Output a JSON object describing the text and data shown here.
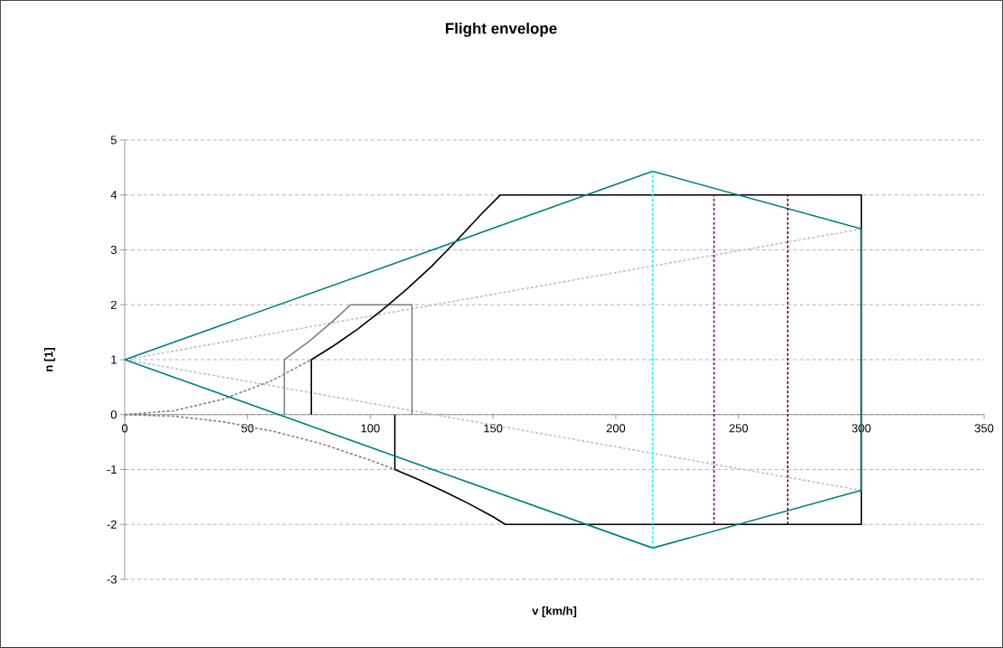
{
  "chart_data": {
    "type": "line",
    "title": "Flight envelope",
    "xlabel": "v [km/h]",
    "ylabel": "n [1]",
    "xlim": [
      0,
      350
    ],
    "xticks": [
      0,
      50,
      100,
      150,
      200,
      250,
      300,
      350
    ],
    "ylim": [
      -3,
      5
    ],
    "yticks": [
      -3,
      -2,
      -1,
      0,
      1,
      2,
      3,
      4,
      5
    ],
    "grid": "y",
    "marker": "none",
    "series": [
      {
        "color": "#c0c0c0",
        "line_style": "dotted",
        "x": [
          0,
          300
        ],
        "values": [
          1,
          3.38
        ]
      },
      {
        "color": "#c0c0c0",
        "line_style": "dotted",
        "x": [
          0,
          300
        ],
        "values": [
          1,
          -1.38
        ]
      },
      {
        "color": "#808080",
        "line_style": "dotted",
        "x": [
          0,
          20,
          40,
          60,
          76
        ],
        "values": [
          0,
          0.07,
          0.28,
          0.62,
          1
        ]
      },
      {
        "color": "#808080",
        "line_style": "dotted",
        "x": [
          0,
          20,
          40,
          60,
          80,
          100,
          110
        ],
        "values": [
          0,
          -0.03,
          -0.13,
          -0.3,
          -0.53,
          -0.83,
          -1
        ]
      },
      {
        "color": "#808080",
        "line_style": "solid",
        "x": [
          65,
          65,
          75,
          85,
          92,
          117,
          117
        ],
        "values": [
          0,
          1,
          1.33,
          1.71,
          2,
          2,
          0
        ]
      },
      {
        "color": "#000000",
        "line_style": "solid",
        "x": [
          76,
          76,
          85,
          95,
          105,
          115,
          125,
          135,
          145,
          153,
          300,
          300,
          155,
          150,
          140,
          130,
          120,
          110,
          110
        ],
        "values": [
          0,
          1,
          1.25,
          1.56,
          1.91,
          2.29,
          2.7,
          3.16,
          3.64,
          4,
          4,
          -2,
          -2,
          -1.86,
          -1.62,
          -1.4,
          -1.19,
          -1,
          0
        ]
      },
      {
        "color": "#008080",
        "line_style": "solid",
        "x": [
          0,
          215,
          300
        ],
        "values": [
          1,
          4.43,
          3.38
        ]
      },
      {
        "color": "#008080",
        "line_style": "solid",
        "x": [
          300,
          300
        ],
        "values": [
          3.38,
          -1.38
        ]
      },
      {
        "color": "#008080",
        "line_style": "solid",
        "x": [
          0,
          215,
          300
        ],
        "values": [
          1,
          -2.43,
          -1.38
        ]
      },
      {
        "color": "#00ffff",
        "line_style": "dotted",
        "x": [
          215,
          215
        ],
        "values": [
          -2.43,
          4.43
        ]
      },
      {
        "color": "#800080",
        "line_style": "dotted",
        "x": [
          240,
          240
        ],
        "values": [
          -2,
          4
        ]
      },
      {
        "color": "#800000",
        "line_style": "dotted",
        "x": [
          270,
          270
        ],
        "values": [
          -2,
          4
        ]
      }
    ]
  }
}
